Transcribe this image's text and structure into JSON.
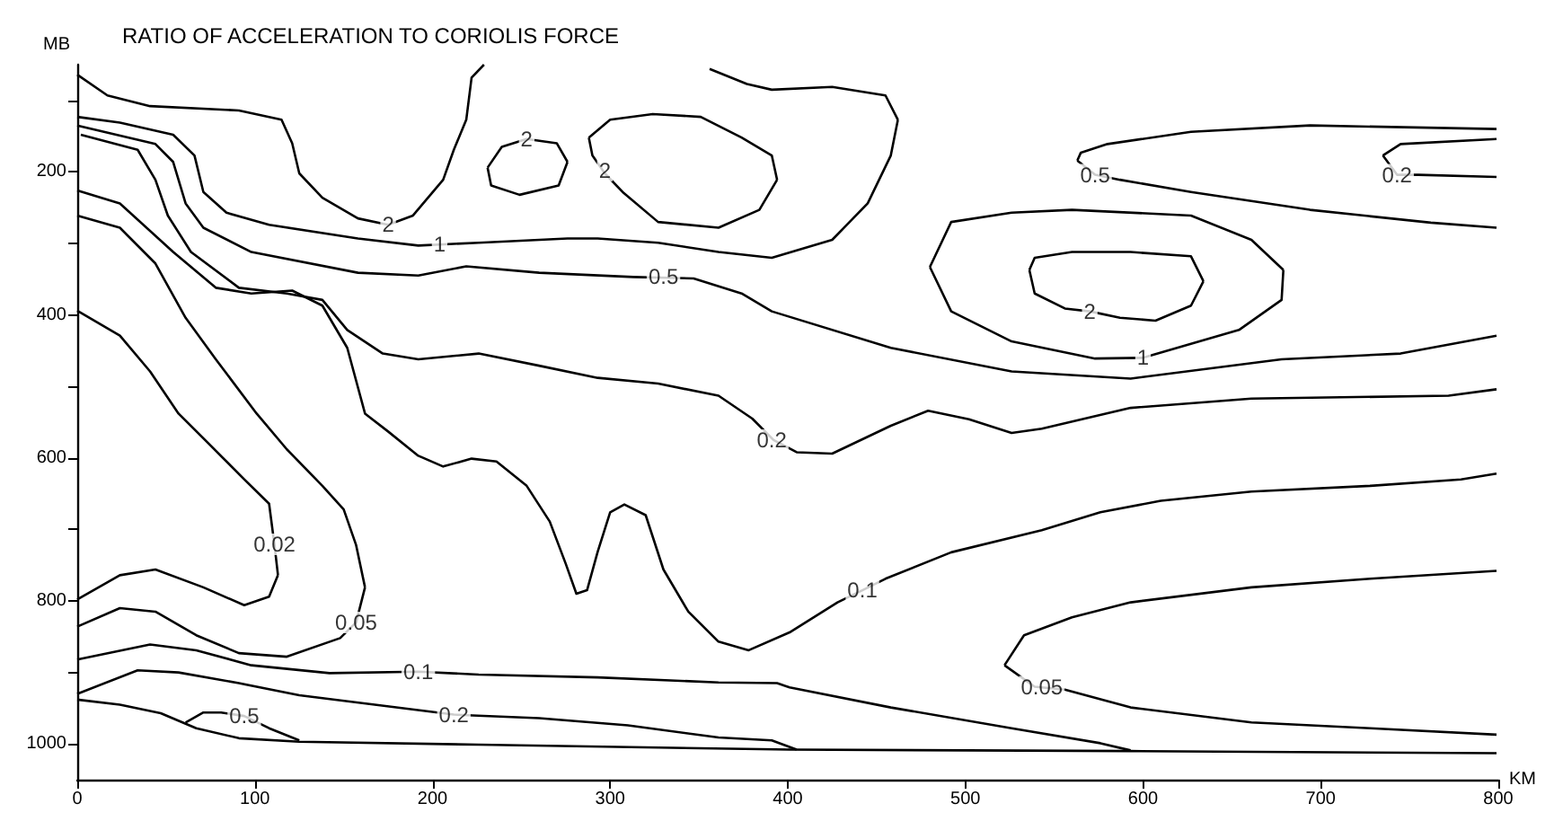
{
  "chart_data": {
    "type": "line",
    "title": "RATIO OF ACCELERATION TO CORIOLIS FORCE",
    "xlabel": "KM",
    "ylabel": "MB",
    "xlim": [
      0,
      800
    ],
    "xticks": [
      0,
      100,
      200,
      300,
      400,
      500,
      600,
      700,
      800
    ],
    "ylim": [
      1050,
      50
    ],
    "yticks": [
      {
        "value": 100,
        "label": null
      },
      200,
      {
        "value": 300,
        "label": null
      },
      400,
      {
        "value": 500,
        "label": null
      },
      600,
      {
        "value": 700,
        "label": null
      },
      800,
      {
        "value": 900,
        "label": null
      },
      1000
    ],
    "grid": false,
    "marker": "none",
    "line_style": "solid",
    "series": [
      {
        "color": "#000000",
        "x": [
          0,
          17,
          41,
          91,
          115,
          121,
          125,
          138,
          158,
          175,
          189,
          206,
          212,
          219,
          222,
          229
        ],
        "values": [
          64,
          93,
          108,
          114,
          127,
          160,
          202,
          236,
          265,
          274,
          261,
          211,
          169,
          127,
          68,
          50
        ]
      },
      {
        "color": "#000000",
        "x": [
          231,
          239,
          253,
          270,
          276
        ],
        "values": [
          194,
          165,
          154,
          160,
          186
        ]
      },
      {
        "color": "#000000",
        "x": [
          231,
          233,
          249,
          271,
          276
        ],
        "values": [
          194,
          219,
          232,
          219,
          186
        ]
      },
      {
        "color": "#000000",
        "x": [
          288,
          300,
          324,
          351,
          374,
          391,
          394
        ],
        "values": [
          152,
          127,
          119,
          123,
          152,
          177,
          211
        ]
      },
      {
        "color": "#000000",
        "x": [
          288,
          290,
          297,
          307,
          327,
          361,
          384,
          394
        ],
        "values": [
          152,
          177,
          202,
          228,
          270,
          278,
          253,
          211
        ]
      },
      {
        "color": "#000000",
        "x": [
          0,
          24,
          54,
          66,
          71,
          84,
          108,
          158,
          192,
          226,
          276,
          293,
          327,
          361,
          391,
          425,
          445,
          458,
          462
        ],
        "values": [
          123,
          131,
          148,
          177,
          228,
          257,
          274,
          293,
          303,
          299,
          293,
          293,
          299,
          312,
          320,
          295,
          244,
          177,
          127
        ]
      },
      {
        "color": "#000000",
        "x": [
          356,
          377,
          391,
          425,
          455,
          462
        ],
        "values": [
          56,
          77,
          85,
          81,
          93,
          127
        ]
      },
      {
        "color": "#000000",
        "x": [
          0,
          44,
          54,
          61,
          71,
          98,
          158,
          192,
          219,
          260,
          313,
          347,
          374,
          391,
          458,
          526,
          593,
          678,
          745,
          799
        ],
        "values": [
          135,
          161,
          186,
          244,
          278,
          312,
          341,
          345,
          332,
          341,
          347,
          349,
          370,
          395,
          446,
          479,
          489,
          462,
          454,
          429
        ]
      },
      {
        "color": "#000000",
        "x": [
          563,
          565,
          580,
          627,
          694,
          799
        ],
        "values": [
          184,
          173,
          161,
          144,
          135,
          140
        ]
      },
      {
        "color": "#000000",
        "x": [
          563,
          573,
          587,
          627,
          694,
          762,
          799
        ],
        "values": [
          184,
          204,
          211,
          228,
          253,
          271,
          278
        ]
      },
      {
        "color": "#000000",
        "x": [
          735,
          745,
          799
        ],
        "values": [
          177,
          161,
          154
        ]
      },
      {
        "color": "#000000",
        "x": [
          735,
          743,
          755,
          799
        ],
        "values": [
          177,
          204,
          204,
          207
        ]
      },
      {
        "color": "#000000",
        "x": [
          480,
          492,
          526,
          560,
          627,
          661,
          679
        ],
        "values": [
          333,
          270,
          257,
          253,
          261,
          295,
          337
        ]
      },
      {
        "color": "#000000",
        "x": [
          480,
          492,
          526,
          573,
          600,
          654,
          678,
          679
        ],
        "values": [
          333,
          395,
          437,
          461,
          460,
          421,
          379,
          337
        ]
      },
      {
        "color": "#000000",
        "x": [
          536,
          539,
          560,
          593,
          627,
          634
        ],
        "values": [
          337,
          320,
          312,
          312,
          318,
          353
        ]
      },
      {
        "color": "#000000",
        "x": [
          536,
          539,
          556,
          570,
          587,
          607,
          627,
          634
        ],
        "values": [
          337,
          370,
          391,
          395,
          404,
          408,
          387,
          353
        ]
      },
      {
        "color": "#000000",
        "x": [
          2,
          34,
          44,
          51,
          64,
          91,
          118,
          138,
          152,
          172,
          192,
          226,
          260,
          293,
          327,
          361,
          380,
          392,
          405,
          425,
          458,
          479,
          502,
          526,
          543,
          593,
          661,
          772,
          799
        ],
        "values": [
          148,
          169,
          211,
          261,
          312,
          362,
          370,
          379,
          421,
          454,
          462,
          454,
          471,
          488,
          496,
          513,
          545,
          575,
          592,
          594,
          555,
          534,
          546,
          565,
          559,
          530,
          517,
          513,
          504
        ]
      },
      {
        "color": "#000000",
        "x": [
          0,
          24,
          54,
          78,
          98,
          121,
          138,
          152,
          162,
          175,
          192,
          206,
          222,
          236,
          253,
          266,
          275,
          281,
          287,
          293,
          300,
          308,
          320,
          330,
          344,
          361,
          378,
          401,
          428,
          442,
          455,
          492,
          543,
          576,
          610,
          661,
          728,
          779,
          799
        ],
        "values": [
          226,
          244,
          312,
          362,
          370,
          366,
          387,
          446,
          538,
          563,
          597,
          612,
          601,
          605,
          639,
          689,
          748,
          790,
          785,
          731,
          676,
          665,
          680,
          756,
          815,
          857,
          869,
          844,
          802,
          785,
          769,
          732,
          701,
          676,
          660,
          647,
          639,
          630,
          622
        ]
      },
      {
        "color": "#000000",
        "x": [
          0,
          24,
          44,
          61,
          78,
          101,
          118,
          138,
          150,
          157,
          162
        ],
        "values": [
          261,
          278,
          328,
          404,
          462,
          538,
          588,
          639,
          672,
          722,
          781
        ]
      },
      {
        "color": "#000000",
        "x": [
          0,
          24,
          44,
          67,
          91,
          118,
          148,
          157,
          162
        ],
        "values": [
          836,
          810,
          815,
          848,
          873,
          878,
          852,
          830,
          781
        ]
      },
      {
        "color": "#000000",
        "x": [
          0,
          24,
          41,
          57,
          74,
          94,
          108,
          111,
          113
        ],
        "values": [
          394,
          429,
          479,
          538,
          580,
          630,
          664,
          721,
          764
        ]
      },
      {
        "color": "#000000",
        "x": [
          0,
          24,
          44,
          71,
          94,
          108,
          113
        ],
        "values": [
          798,
          764,
          756,
          781,
          806,
          794,
          764
        ]
      },
      {
        "color": "#000000",
        "x": [
          522,
          533,
          560,
          593,
          661,
          728,
          799
        ],
        "values": [
          890,
          848,
          823,
          802,
          781,
          769,
          758
        ]
      },
      {
        "color": "#000000",
        "x": [
          522,
          539,
          556,
          593,
          661,
          728,
          799
        ],
        "values": [
          890,
          920,
          924,
          949,
          970,
          978,
          987
        ]
      },
      {
        "color": "#000000",
        "x": [
          0,
          41,
          67,
          98,
          142,
          192,
          226,
          293,
          361,
          394,
          401,
          458,
          526,
          576,
          593
        ],
        "values": [
          882,
          861,
          869,
          890,
          901,
          899,
          903,
          907,
          914,
          915,
          921,
          949,
          978,
          999,
          1009
        ]
      },
      {
        "color": "#000000",
        "x": [
          0,
          34,
          57,
          91,
          125,
          212,
          260,
          310,
          361,
          391,
          405
        ],
        "values": [
          930,
          897,
          900,
          915,
          932,
          959,
          964,
          974,
          991,
          995,
          1008
        ]
      },
      {
        "color": "#000000",
        "x": [
          61,
          71,
          81,
          94,
          108,
          125
        ],
        "values": [
          970,
          956,
          956,
          961,
          978,
          995
        ]
      },
      {
        "color": "#000000",
        "x": [
          0,
          24,
          47,
          67,
          91,
          125,
          226,
          401,
          593,
          799
        ],
        "values": [
          938,
          945,
          957,
          978,
          992,
          997,
          1001,
          1008,
          1010,
          1013
        ]
      }
    ],
    "annotations": [
      {
        "text": "2",
        "x": 175,
        "y": 274
      },
      {
        "text": "2",
        "x": 253,
        "y": 154
      },
      {
        "text": "2",
        "x": 297,
        "y": 198
      },
      {
        "text": "1",
        "x": 204,
        "y": 301
      },
      {
        "text": "0.5",
        "x": 330,
        "y": 347
      },
      {
        "text": "0.5",
        "x": 573,
        "y": 204
      },
      {
        "text": "0.2",
        "x": 743,
        "y": 204
      },
      {
        "text": "2",
        "x": 570,
        "y": 395
      },
      {
        "text": "1",
        "x": 600,
        "y": 460
      },
      {
        "text": "0.2",
        "x": 391,
        "y": 575
      },
      {
        "text": "0.02",
        "x": 111,
        "y": 721
      },
      {
        "text": "0.05",
        "x": 157,
        "y": 830
      },
      {
        "text": "0.1",
        "x": 442,
        "y": 785
      },
      {
        "text": "0.05",
        "x": 543,
        "y": 920
      },
      {
        "text": "0.1",
        "x": 192,
        "y": 899
      },
      {
        "text": "0.2",
        "x": 212,
        "y": 959
      },
      {
        "text": "0.5",
        "x": 94,
        "y": 961
      }
    ]
  }
}
